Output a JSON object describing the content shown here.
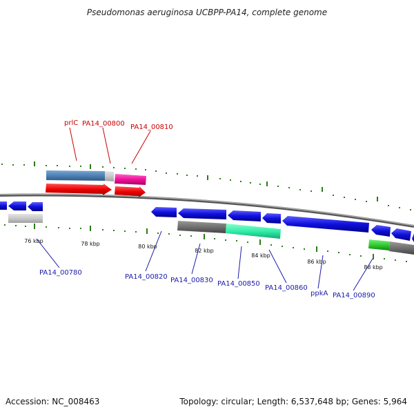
{
  "title": "Pseudomonas aeruginosa UCBPP-PA14, complete genome",
  "footer": {
    "accession": "Accession: NC_008463",
    "summary": "Topology: circular; Length: 6,537,648 bp; Genes: 5,964"
  },
  "ticks": [
    "76 kbp",
    "78 kbp",
    "80 kbp",
    "82 kbp",
    "84 kbp",
    "86 kbp",
    "88 kbp"
  ],
  "labels": {
    "prlC": "prlC",
    "pa14_00800": "PA14_00800",
    "pa14_00810": "PA14_00810",
    "pa14_00780": "PA14_00780",
    "pa14_00820": "PA14_00820",
    "pa14_00830": "PA14_00830",
    "pa14_00850": "PA14_00850",
    "pa14_00860": "PA14_00860",
    "ppkA": "ppkA",
    "pa14_00890": "PA14_00890"
  },
  "colors": {
    "blue_gene": "#1010dd",
    "red_gene": "#ee0000",
    "pink_gene": "#ee1199",
    "steel": "#4f82b4",
    "gray_dark": "#707070",
    "gray_light": "#c8c8c8",
    "aqua": "#33eeaa",
    "green": "#33cc33",
    "tick_green": "#2a7a18"
  }
}
